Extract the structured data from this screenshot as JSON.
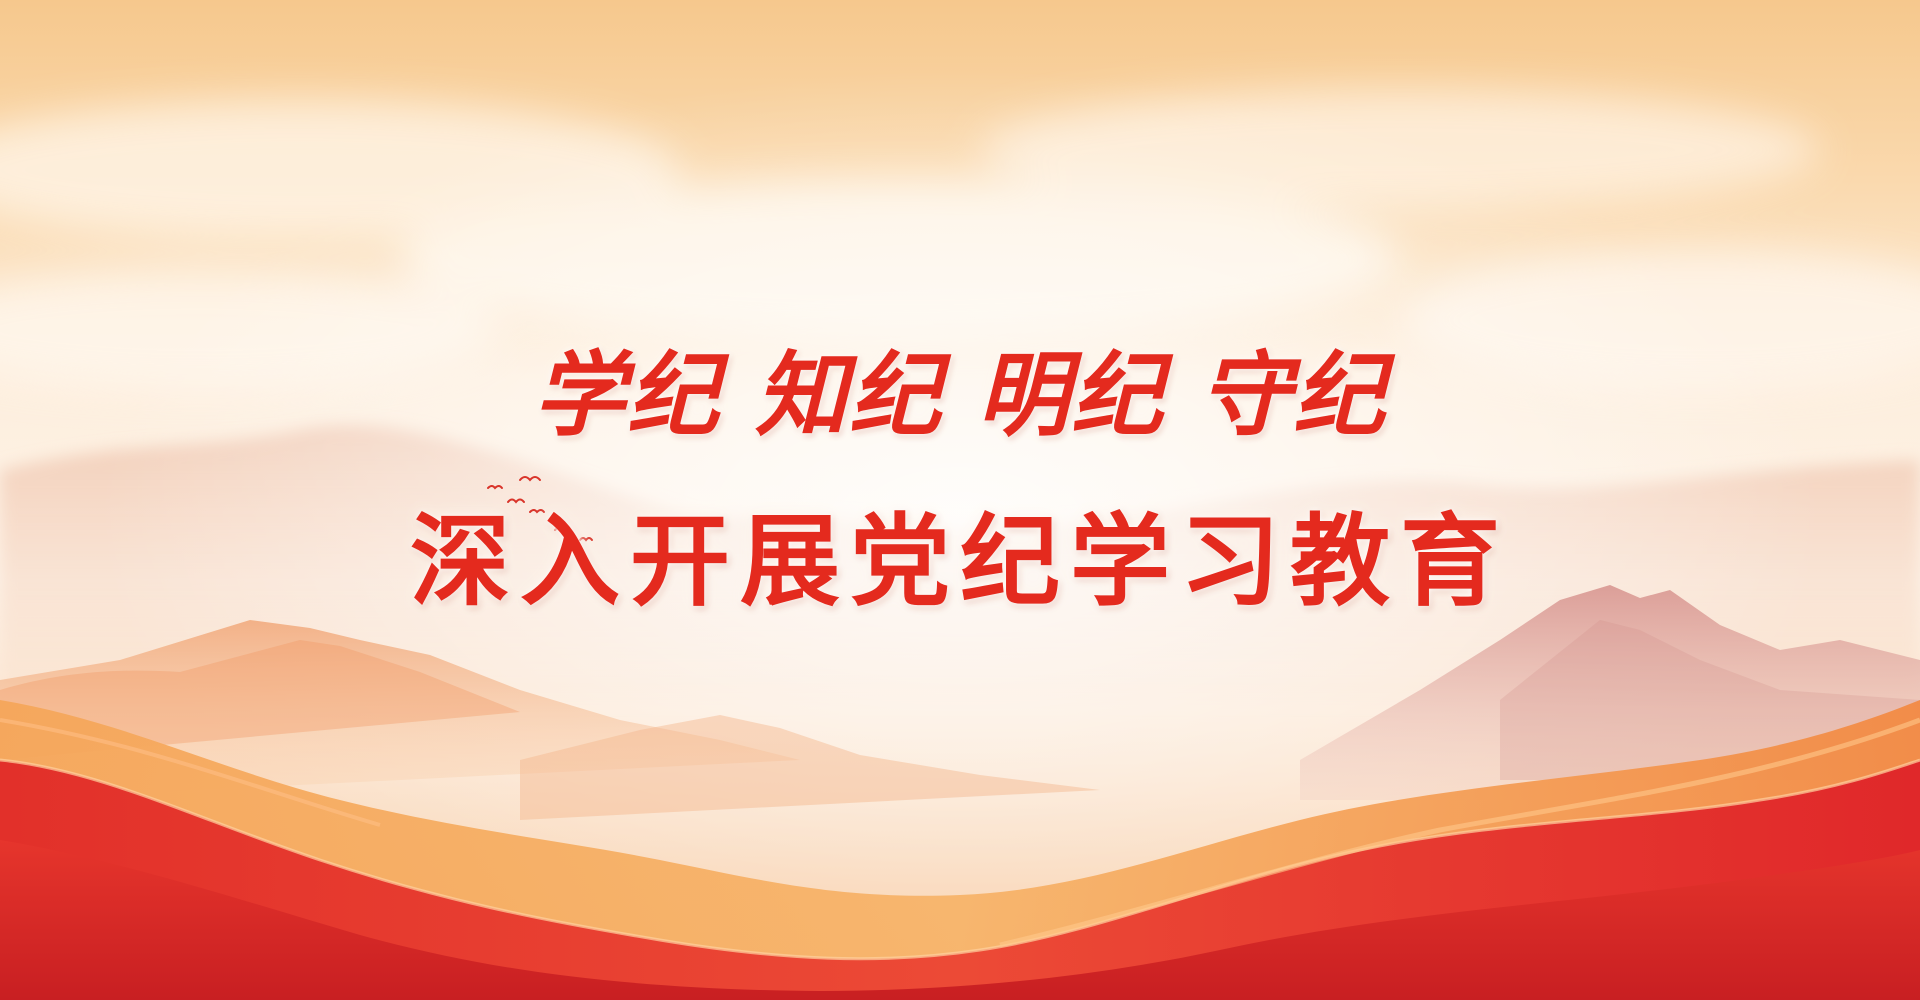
{
  "banner": {
    "slogan": "学纪 知纪 明纪 守纪",
    "subtitle": "深入开展党纪学习教育"
  },
  "colors": {
    "text_red": "#e42a1e",
    "sky_top": "#f7cf97",
    "sky_mid": "#fdf1e4",
    "wave_red": "#e0352c",
    "wave_orange": "#f39a4a",
    "mountain_pink": "#d99f9a"
  },
  "decorations": [
    "flying-birds",
    "mountain-range",
    "red-waves",
    "clouds"
  ]
}
